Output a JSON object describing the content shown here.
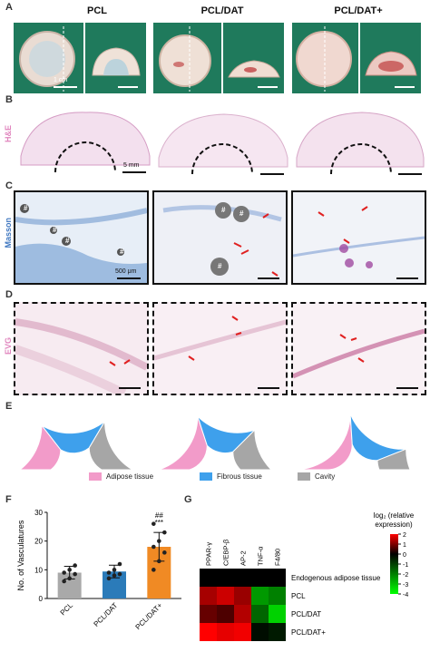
{
  "panels": {
    "A": "A",
    "B": "B",
    "C": "C",
    "D": "D",
    "E": "E",
    "F": "F",
    "G": "G"
  },
  "groups": [
    "PCL",
    "PCL/DAT",
    "PCL/DAT+"
  ],
  "row_labels": {
    "he": "H&E",
    "masson": "Masson",
    "evg": "EVG"
  },
  "scales": {
    "a": "1 cm",
    "b": "5 mm",
    "c": "500 μm"
  },
  "marks": {
    "hash": "#"
  },
  "legend_e": [
    {
      "label": "Adipose tissue",
      "color": "#f29bc9"
    },
    {
      "label": "Fibrous tissue",
      "color": "#3ea0ec"
    },
    {
      "label": "Cavity",
      "color": "#a6a6a6"
    }
  ],
  "colors": {
    "photo_bg": "#1f7a5c",
    "adipose": "#f29bc9",
    "fibrous": "#3ea0ec",
    "cavity": "#a6a6a6",
    "bar_pcl": "#a9a9a9",
    "bar_dat": "#2b7bb9",
    "bar_datp": "#f08a24"
  },
  "chart_data": [
    {
      "type": "pie",
      "panel": "E",
      "note": "semicircular ring charts",
      "charts": [
        {
          "group": "PCL",
          "categories": [
            "Adipose tissue",
            "Fibrous tissue",
            "Cavity"
          ],
          "values": [
            29,
            38,
            33
          ]
        },
        {
          "group": "PCL/DAT",
          "categories": [
            "Adipose tissue",
            "Fibrous tissue",
            "Cavity"
          ],
          "values": [
            40,
            35,
            25
          ]
        },
        {
          "group": "PCL/DAT+",
          "categories": [
            "Adipose tissue",
            "Fibrous tissue",
            "Cavity"
          ],
          "values": [
            48,
            40,
            12
          ]
        }
      ]
    },
    {
      "type": "bar",
      "panel": "F",
      "categories": [
        "PCL",
        "PCL/DAT",
        "PCL/DAT+"
      ],
      "values": [
        9,
        9.4,
        18
      ],
      "errors": [
        2.2,
        2.2,
        5
      ],
      "points": [
        [
          6,
          7,
          8.5,
          9,
          10,
          11.5
        ],
        [
          7,
          8,
          8.5,
          9,
          10,
          12
        ],
        [
          10,
          13,
          16,
          18,
          20,
          23,
          26
        ]
      ],
      "annotations": {
        "PCL/DAT+": [
          "##",
          "***"
        ]
      },
      "ylabel": "No. of Vasculatures",
      "ylim": [
        0,
        30
      ],
      "yticks": [
        0,
        10,
        20,
        30
      ]
    },
    {
      "type": "heatmap",
      "panel": "G",
      "columns": [
        "PPAR-γ",
        "C/EBP-β",
        "AP-2",
        "TNF-α",
        "F4/80"
      ],
      "rows": [
        "Endogenous adipose tissue",
        "PCL",
        "PCL/DAT",
        "PCL/DAT+"
      ],
      "values": [
        [
          0,
          0,
          0,
          0,
          0
        ],
        [
          1.3,
          1.6,
          1.2,
          -2.4,
          -2.0
        ],
        [
          0.8,
          0.6,
          1.4,
          -1.6,
          -3.3
        ],
        [
          2.0,
          1.8,
          1.9,
          -0.2,
          -0.4
        ]
      ],
      "colorbar": {
        "label": "log₂ (relative expression)",
        "range": [
          -4,
          2
        ],
        "ticks": [
          2,
          1,
          0,
          -1,
          -2,
          -3,
          -4
        ]
      }
    }
  ]
}
